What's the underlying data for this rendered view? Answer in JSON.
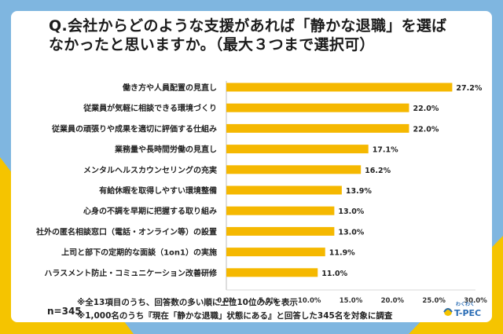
{
  "title": "Q.会社からどのような支援があれば「静かな退職」を選ばなかったと思いますか。（最大３つまで選択可）",
  "n_label": "n=345",
  "notes": [
    "※全13項目のうち、回答数の多い順に上位10位のみを表示",
    "※1,000名のうち『現在「静かな退職」状態にある』と回答した345名を対象に調査"
  ],
  "logo": {
    "text": "T-PEC",
    "small": "わくわく"
  },
  "colors": {
    "bar": "#f5b800",
    "background": "#7fb6e0",
    "accent": "#f5c400"
  },
  "chart_data": {
    "type": "bar",
    "orientation": "horizontal",
    "categories": [
      "働き方や人員配置の見直し",
      "従業員が気軽に相談できる環境づくり",
      "従業員の頑張りや成果を適切に評価する仕組み",
      "業務量や長時間労働の見直し",
      "メンタルヘルスカウンセリングの充実",
      "有給休暇を取得しやすい環境整備",
      "心身の不調を早期に把握する取り組み",
      "社外の匿名相談窓口（電話・オンライン等）の設置",
      "上司と部下の定期的な面談（1on1）の実施",
      "ハラスメント防止・コミュニケーション改善研修"
    ],
    "values": [
      27.2,
      22.0,
      22.0,
      17.1,
      16.2,
      13.9,
      13.0,
      13.0,
      11.9,
      11.0
    ],
    "value_labels": [
      "27.2%",
      "22.0%",
      "22.0%",
      "17.1%",
      "16.2%",
      "13.9%",
      "13.0%",
      "13.0%",
      "11.9%",
      "11.0%"
    ],
    "xlim": [
      0,
      30
    ],
    "xticks": [
      "0.0%",
      "5.0%",
      "10.0%",
      "15.0%",
      "20.0%",
      "25.0%",
      "30.0%"
    ],
    "xtick_values": [
      0,
      5,
      10,
      15,
      20,
      25,
      30
    ],
    "grid": false
  }
}
